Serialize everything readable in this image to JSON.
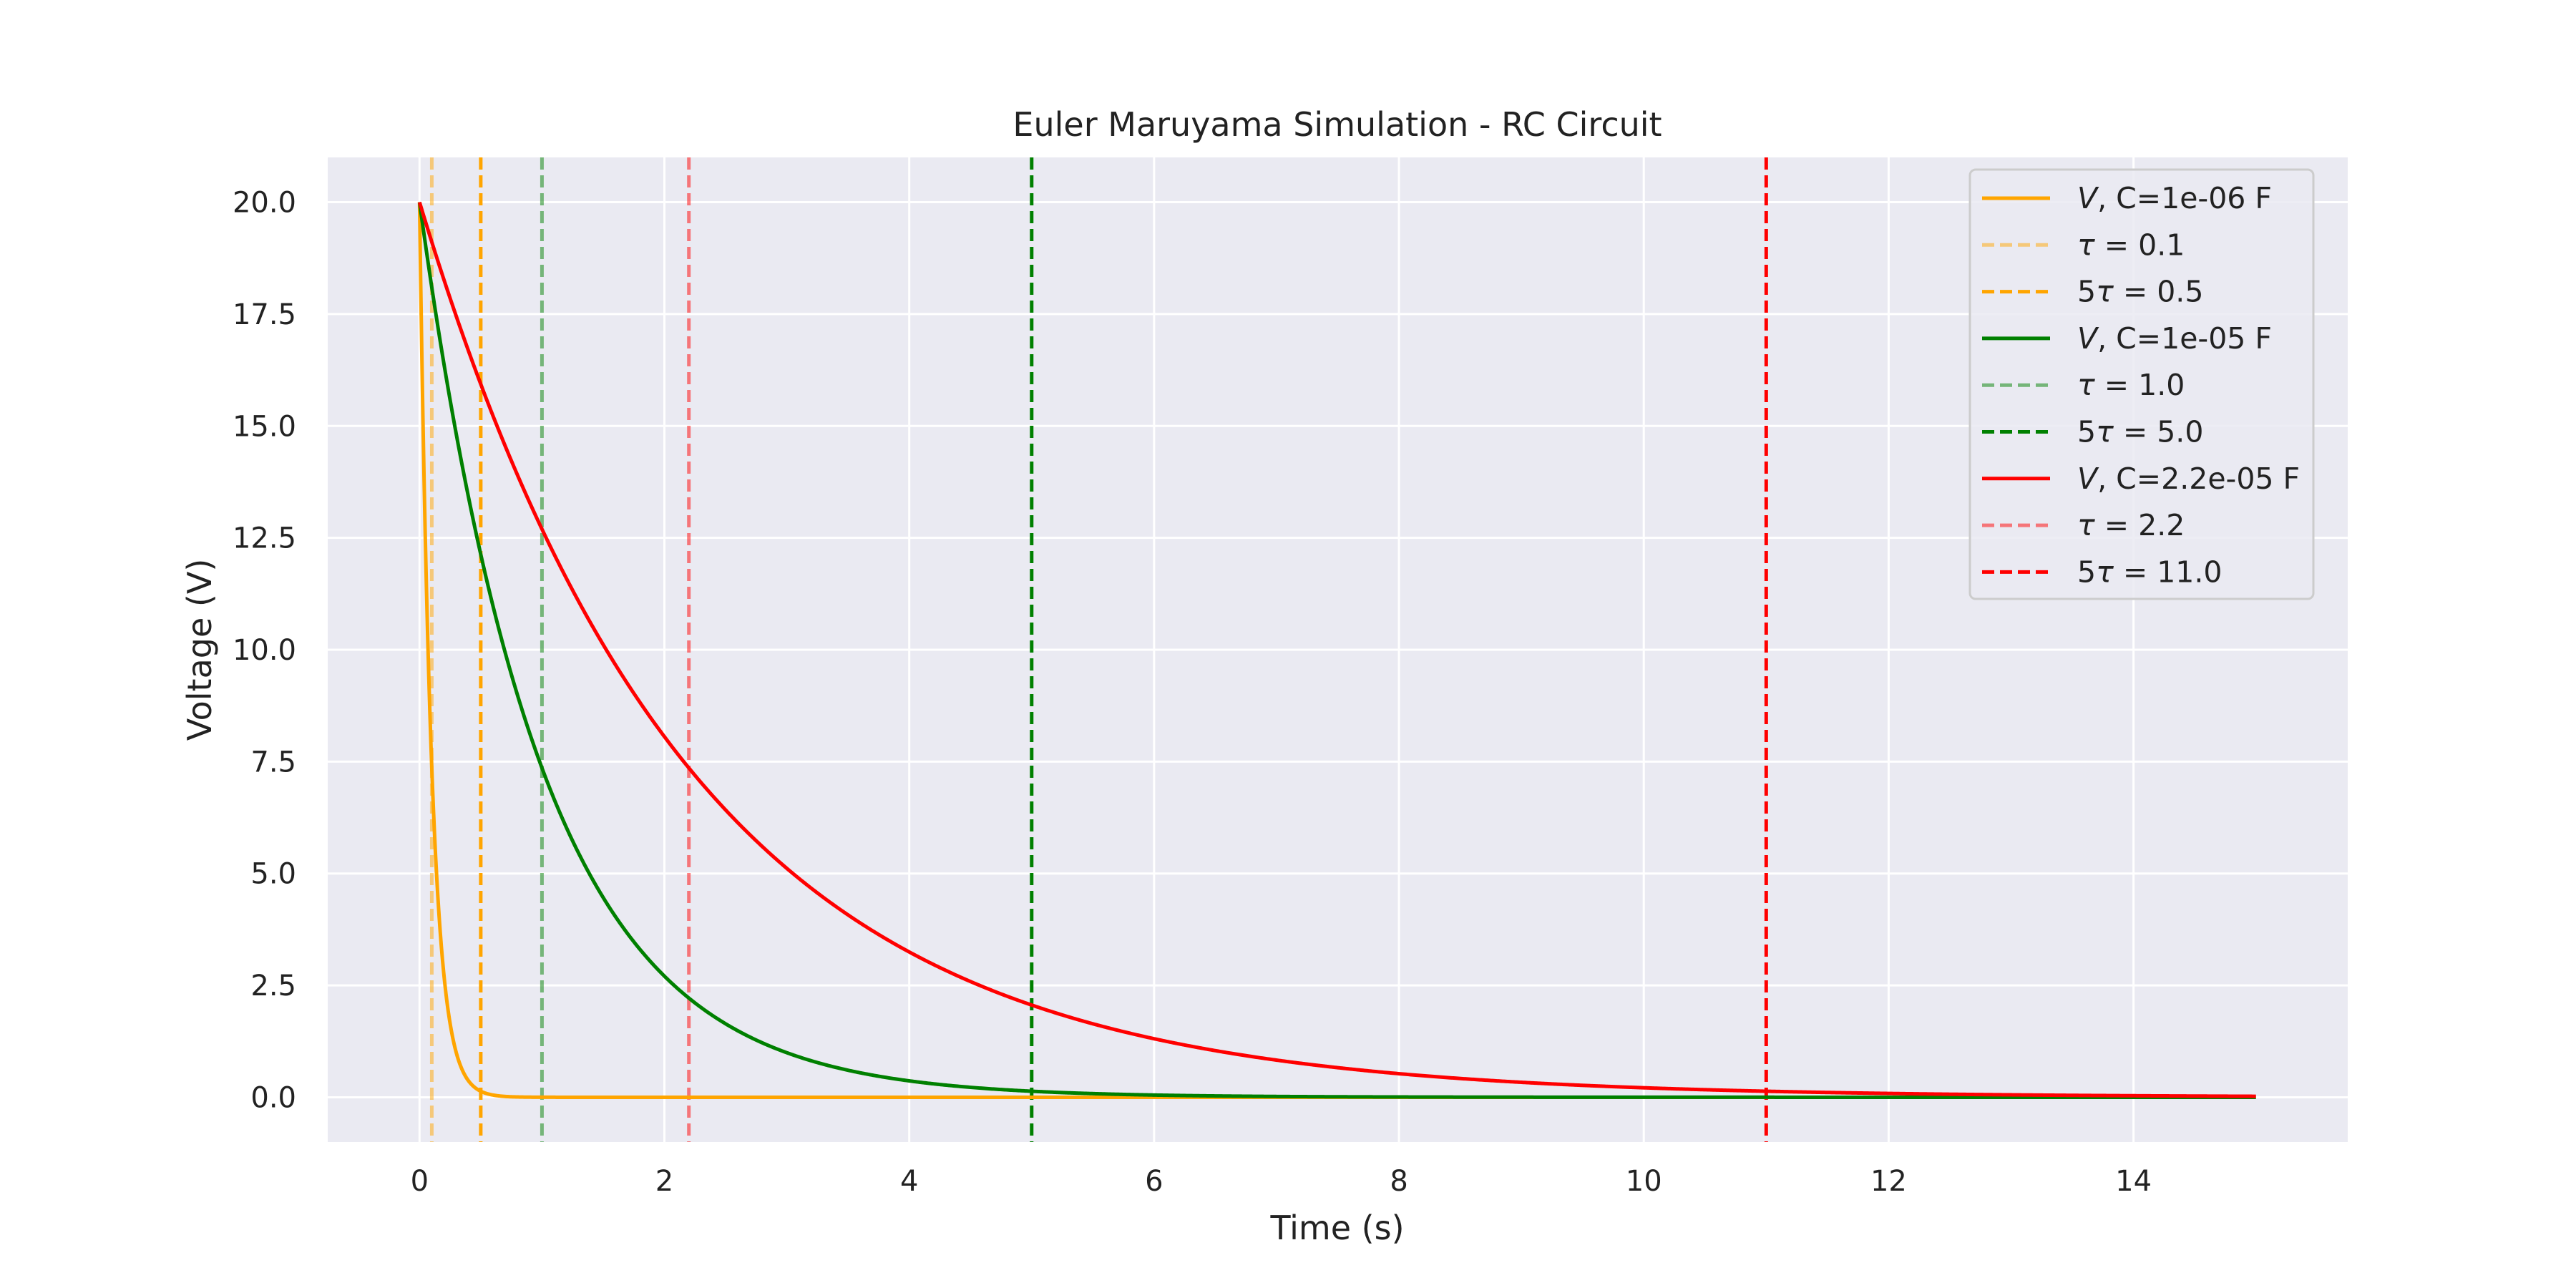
{
  "chart_data": {
    "type": "line",
    "title": "Euler Maruyama Simulation - RC Circuit",
    "xlabel": "Time (s)",
    "ylabel": "Voltage (V)",
    "xlim": [
      -0.75,
      15.75
    ],
    "ylim": [
      -1.0,
      21.0
    ],
    "x_ticks": [
      0,
      2,
      4,
      6,
      8,
      10,
      12,
      14
    ],
    "x_tick_labels": [
      "0",
      "2",
      "4",
      "6",
      "8",
      "10",
      "12",
      "14"
    ],
    "y_ticks": [
      0.0,
      2.5,
      5.0,
      7.5,
      10.0,
      12.5,
      15.0,
      17.5,
      20.0
    ],
    "y_tick_labels": [
      "0.0",
      "2.5",
      "5.0",
      "7.5",
      "10.0",
      "12.5",
      "15.0",
      "17.5",
      "20.0"
    ],
    "grid": true,
    "legend_position": "top-right",
    "background_color": "#eaeaf2",
    "grid_color": "#ffffff",
    "series": [
      {
        "name": "V, C=1e-06 F",
        "legend_var": "V",
        "legend_rest": ", C=1e-06 F",
        "color": "#ffa500",
        "style": "solid",
        "V0": 20,
        "tau": 0.1,
        "t_start": 0,
        "t_end": 15
      },
      {
        "name": "V, C=1e-05 F",
        "legend_var": "V",
        "legend_rest": ", C=1e-05 F",
        "color": "#008000",
        "style": "solid",
        "V0": 20,
        "tau": 1.0,
        "t_start": 0,
        "t_end": 15
      },
      {
        "name": "V, C=2.2e-05 F",
        "legend_var": "V",
        "legend_rest": ", C=2.2e-05 F",
        "color": "#ff0000",
        "style": "solid",
        "V0": 20,
        "tau": 2.2,
        "t_start": 0,
        "t_end": 15
      }
    ],
    "vlines": [
      {
        "x": 0.1,
        "color": "#ffa500",
        "opacity": 0.5,
        "style": "dashed",
        "legend_prefix": "",
        "legend_sym": "τ",
        "legend_rest": " = 0.1"
      },
      {
        "x": 0.5,
        "color": "#ffa500",
        "opacity": 1.0,
        "style": "dashed",
        "legend_prefix": "5",
        "legend_sym": "τ",
        "legend_rest": " = 0.5"
      },
      {
        "x": 1.0,
        "color": "#008000",
        "opacity": 0.5,
        "style": "dashed",
        "legend_prefix": "",
        "legend_sym": "τ",
        "legend_rest": " = 1.0"
      },
      {
        "x": 5.0,
        "color": "#008000",
        "opacity": 1.0,
        "style": "dashed",
        "legend_prefix": "5",
        "legend_sym": "τ",
        "legend_rest": " = 5.0"
      },
      {
        "x": 2.2,
        "color": "#ff0000",
        "opacity": 0.5,
        "style": "dashed",
        "legend_prefix": "",
        "legend_sym": "τ",
        "legend_rest": " = 2.2"
      },
      {
        "x": 11.0,
        "color": "#ff0000",
        "opacity": 1.0,
        "style": "dashed",
        "legend_prefix": "5",
        "legend_sym": "τ",
        "legend_rest": " = 11.0"
      }
    ],
    "legend_order": [
      {
        "kind": "series",
        "index": 0
      },
      {
        "kind": "vline",
        "index": 0
      },
      {
        "kind": "vline",
        "index": 1
      },
      {
        "kind": "series",
        "index": 1
      },
      {
        "kind": "vline",
        "index": 2
      },
      {
        "kind": "vline",
        "index": 3
      },
      {
        "kind": "series",
        "index": 2
      },
      {
        "kind": "vline",
        "index": 4
      },
      {
        "kind": "vline",
        "index": 5
      }
    ]
  }
}
